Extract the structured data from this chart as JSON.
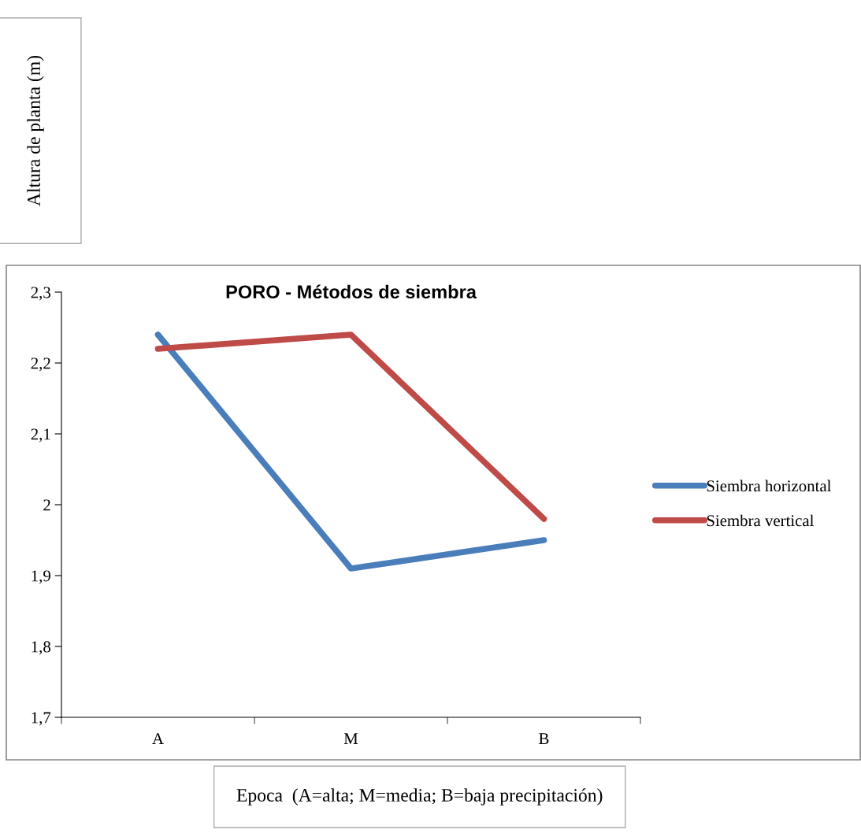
{
  "chart_data": {
    "type": "line",
    "title": "PORO - Métodos de siembra",
    "xlabel": "Epoca  (A=alta; M=media; B=baja precipitación)",
    "ylabel": "Altura de planta (m)",
    "categories": [
      "A",
      "M",
      "B"
    ],
    "series": [
      {
        "name": "Siembra horizontal",
        "color": "#4a7ebb",
        "values": [
          2.24,
          1.91,
          1.95
        ]
      },
      {
        "name": "Siembra vertical",
        "color": "#be4b48",
        "values": [
          2.22,
          2.24,
          1.98
        ]
      }
    ],
    "ylim": [
      1.7,
      2.3
    ],
    "yticks": [
      {
        "value": 1.7,
        "label": "1,7"
      },
      {
        "value": 1.8,
        "label": "1,8"
      },
      {
        "value": 1.9,
        "label": "1,9"
      },
      2,
      {
        "value": 2.1,
        "label": "2,1"
      },
      {
        "value": 2.2,
        "label": "2,2"
      },
      {
        "value": 2.3,
        "label": "2,3"
      }
    ],
    "grid": false,
    "legend": "right",
    "marker": "none",
    "line_style": "solid"
  }
}
